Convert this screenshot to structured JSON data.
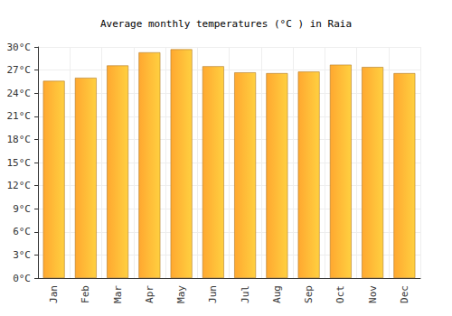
{
  "chart_data": {
    "type": "bar",
    "title": "Average monthly temperatures (°C ) in Raia",
    "categories": [
      "Jan",
      "Feb",
      "Mar",
      "Apr",
      "May",
      "Jun",
      "Jul",
      "Aug",
      "Sep",
      "Oct",
      "Nov",
      "Dec"
    ],
    "values": [
      25.6,
      26.0,
      27.6,
      29.3,
      29.7,
      27.5,
      26.7,
      26.6,
      26.8,
      27.7,
      27.4,
      26.6
    ],
    "color": "#ffa830",
    "ylim": [
      0,
      30
    ],
    "yticks": [
      {
        "value": 0,
        "label": "0°C"
      },
      {
        "value": 3,
        "label": "3°C"
      },
      {
        "value": 6,
        "label": "6°C"
      },
      {
        "value": 9,
        "label": "9°C"
      },
      {
        "value": 12,
        "label": "12°C"
      },
      {
        "value": 15,
        "label": "15°C"
      },
      {
        "value": 18,
        "label": "18°C"
      },
      {
        "value": 21,
        "label": "21°C"
      },
      {
        "value": 24,
        "label": "24°C"
      },
      {
        "value": 27,
        "label": "27°C"
      },
      {
        "value": 30,
        "label": "30°C"
      }
    ],
    "grid": true
  }
}
